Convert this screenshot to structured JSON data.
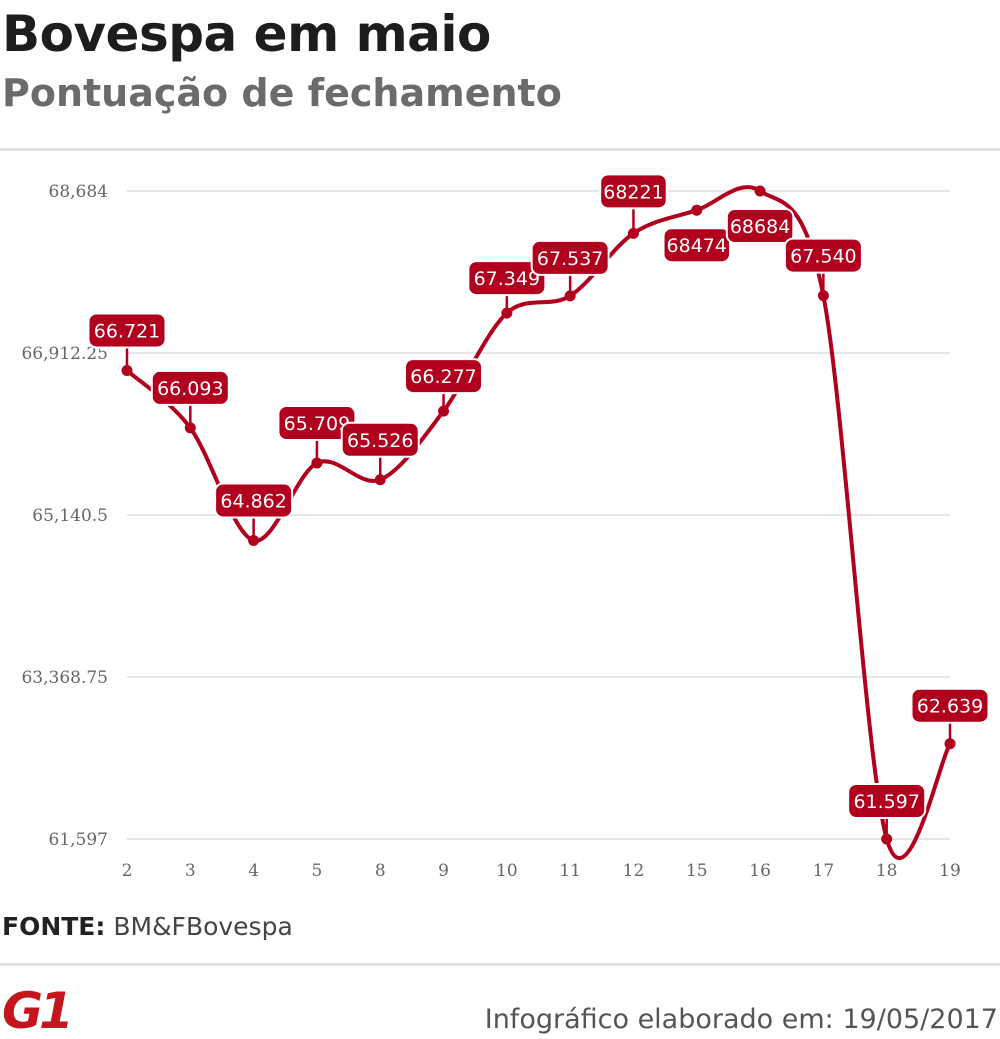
{
  "header": {
    "title": "Bovespa em maio",
    "subtitle": "Pontuação de fechamento"
  },
  "source": {
    "label": "FONTE:",
    "value": "BM&FBovespa"
  },
  "footer": {
    "text": "Infográfico elaborado em: 19/05/2017"
  },
  "brand": {
    "logo": "G1",
    "logo_color": "#c4161c"
  },
  "colors": {
    "line": "#b0001e",
    "label_bg": "#b0001e",
    "label_text": "#ffffff",
    "grid": "#dddddd",
    "tick_text": "#666666"
  },
  "chart_data": {
    "type": "line",
    "title": "Bovespa em maio",
    "subtitle": "Pontuação de fechamento",
    "xlabel": "",
    "ylabel": "",
    "categories": [
      "2",
      "3",
      "4",
      "5",
      "8",
      "9",
      "10",
      "11",
      "12",
      "15",
      "16",
      "17",
      "18",
      "19"
    ],
    "values": [
      66721,
      66093,
      64862,
      65709,
      65526,
      66277,
      67349,
      67537,
      68221,
      68474,
      68684,
      67540,
      61597,
      62639
    ],
    "data_labels": [
      "66.721",
      "66.093",
      "64.862",
      "65.709",
      "65.526",
      "66.277",
      "67.349",
      "67.537",
      "68221",
      "68474",
      "68684",
      "67.540",
      "61.597",
      "62.639"
    ],
    "yticks": [
      61597,
      63368.75,
      65140.5,
      66912.25,
      68684
    ],
    "ytick_labels": [
      "61,597",
      "63,368.75",
      "65,140.5",
      "66,912.25",
      "68,684"
    ],
    "ylim": [
      61597,
      68684
    ],
    "grid": true,
    "legend": "none"
  }
}
